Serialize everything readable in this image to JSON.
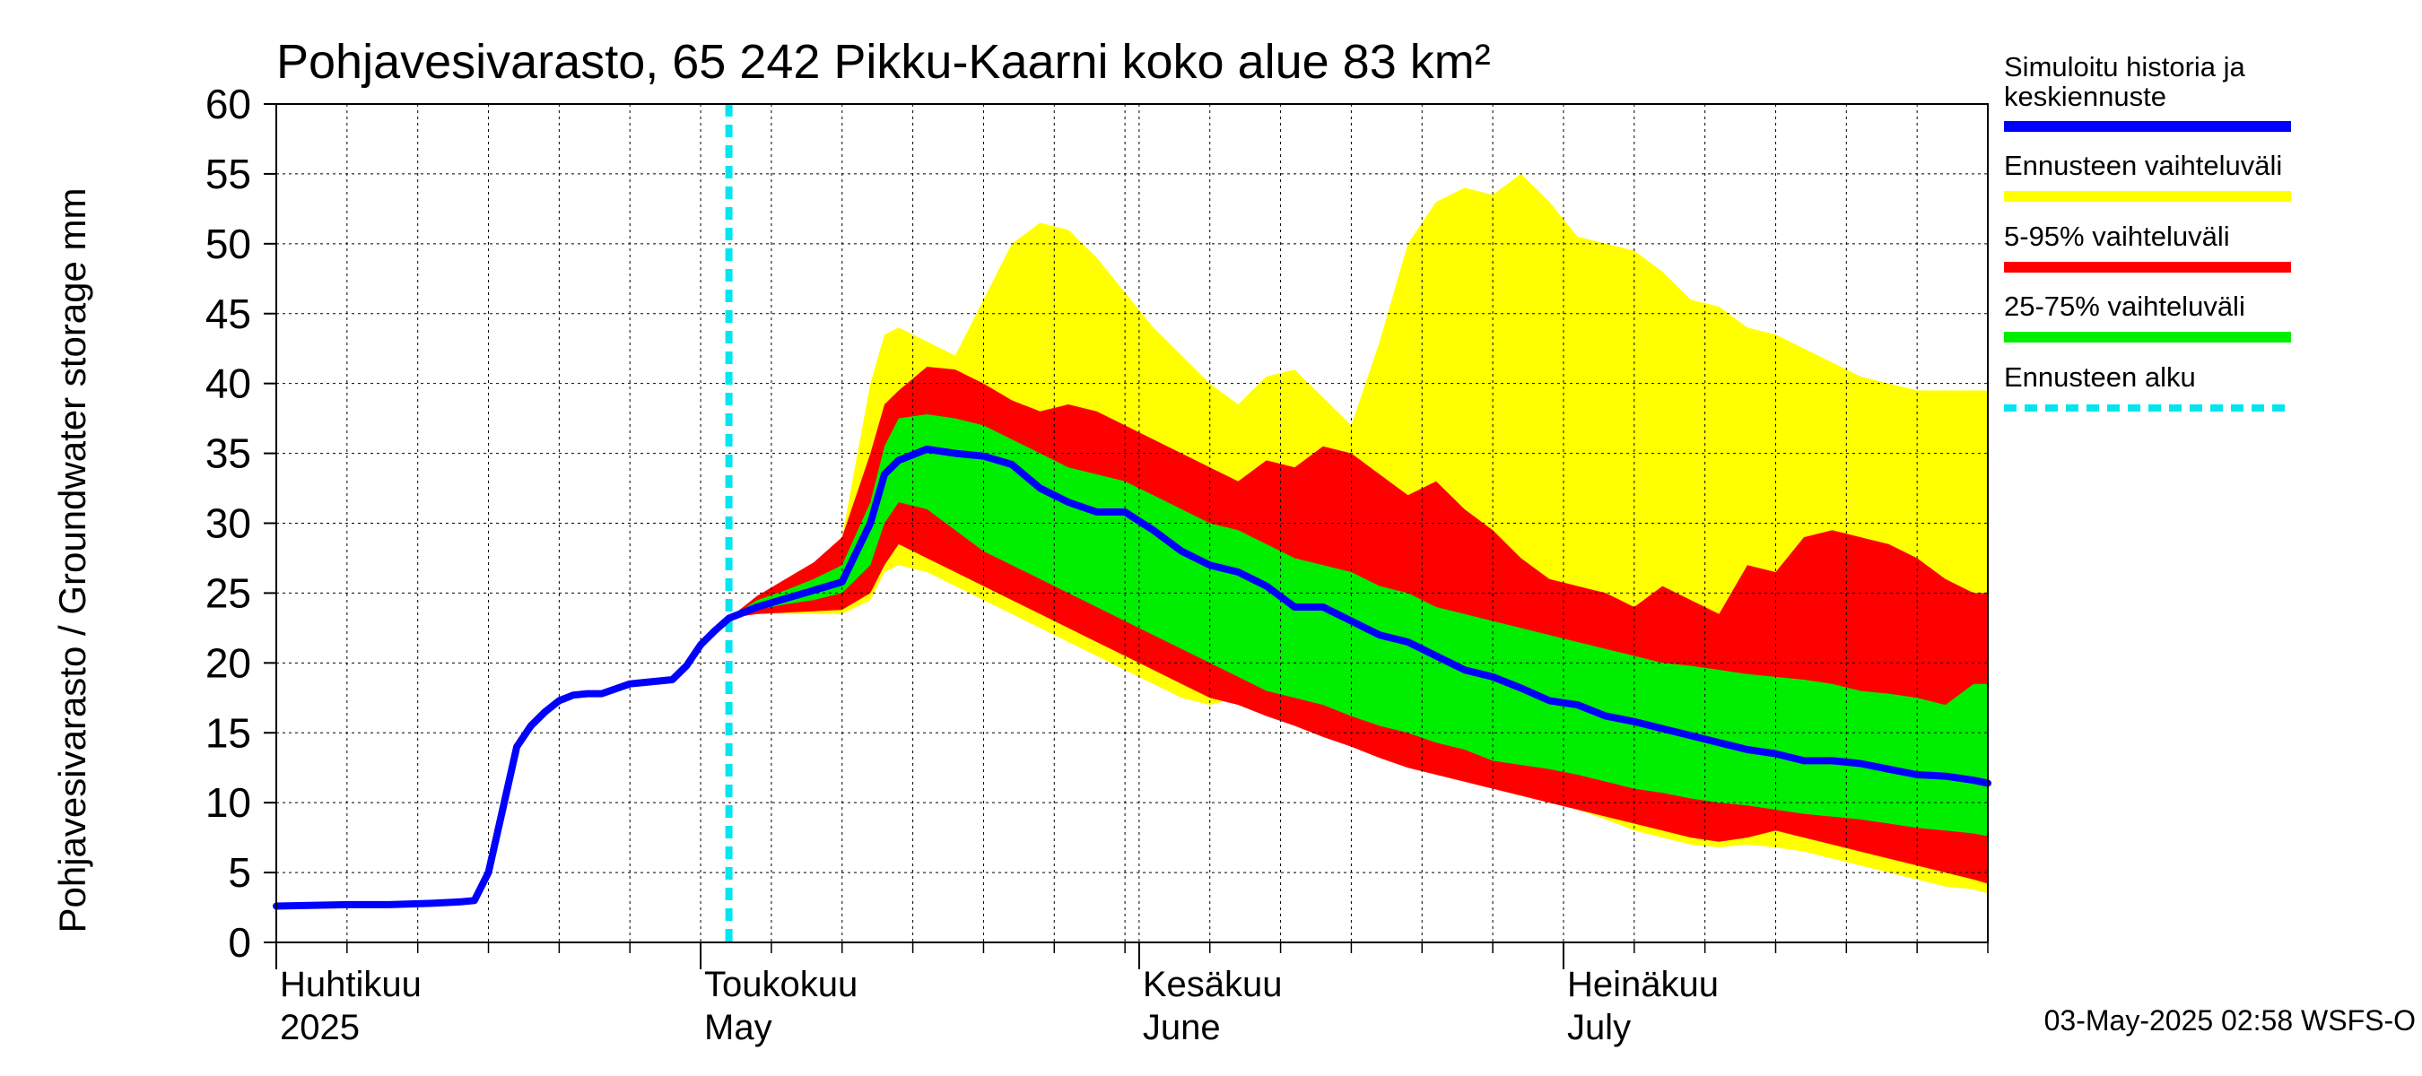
{
  "chart_data": {
    "type": "area",
    "title": "Pohjavesivarasto, 65 242 Pikku-Kaarni koko alue 83 km²",
    "ylabel": "Pohjavesivarasto / Groundwater storage   mm",
    "ylim": [
      0,
      60
    ],
    "yticks": [
      0,
      5,
      10,
      15,
      20,
      25,
      30,
      35,
      40,
      45,
      50,
      55,
      60
    ],
    "xlim": [
      "2025-04-01",
      "2025-07-31"
    ],
    "month_labels": [
      {
        "date": "2025-04-01",
        "fi": "Huhtikuu",
        "en": "2025"
      },
      {
        "date": "2025-05-01",
        "fi": "Toukokuu",
        "en": "May"
      },
      {
        "date": "2025-06-01",
        "fi": "Kesäkuu",
        "en": "June"
      },
      {
        "date": "2025-07-01",
        "fi": "Heinäkuu",
        "en": "July"
      }
    ],
    "forecast_start": "2025-05-03",
    "footer": "03-May-2025 02:58 WSFS-O",
    "grid": true,
    "legend_position": "right",
    "legend": [
      {
        "label": "Simuloitu historia ja keskiennuste",
        "color": "#0000ff",
        "style": "solid"
      },
      {
        "label": "Ennusteen vaihteluväli",
        "color": "#ffff00",
        "style": "solid"
      },
      {
        "label": "5-95% vaihteluväli",
        "color": "#ff0000",
        "style": "solid"
      },
      {
        "label": "25-75% vaihteluväli",
        "color": "#00ee00",
        "style": "solid"
      },
      {
        "label": "Ennusteen alku",
        "color": "#00e5ee",
        "style": "dashed"
      }
    ],
    "colors": {
      "median": "#0000ff",
      "range": "#ffff00",
      "p5_95": "#ff0000",
      "p25_75": "#00ee00",
      "forecast_start": "#00e5ee"
    },
    "history": {
      "dates": [
        "2025-04-01",
        "2025-04-06",
        "2025-04-09",
        "2025-04-12",
        "2025-04-14",
        "2025-04-15",
        "2025-04-16",
        "2025-04-17",
        "2025-04-18",
        "2025-04-19",
        "2025-04-20",
        "2025-04-21",
        "2025-04-22",
        "2025-04-23",
        "2025-04-24",
        "2025-04-26",
        "2025-04-27",
        "2025-04-29",
        "2025-04-30",
        "2025-05-01",
        "2025-05-02",
        "2025-05-03"
      ],
      "values": [
        2.6,
        2.7,
        2.7,
        2.8,
        2.9,
        3.0,
        5.0,
        9.5,
        14.0,
        15.5,
        16.5,
        17.3,
        17.7,
        17.8,
        17.8,
        18.5,
        18.6,
        18.8,
        19.8,
        21.3,
        22.3,
        23.2
      ]
    },
    "forecast": {
      "dates": [
        "2025-05-03",
        "2025-05-05",
        "2025-05-07",
        "2025-05-09",
        "2025-05-11",
        "2025-05-13",
        "2025-05-14",
        "2025-05-15",
        "2025-05-17",
        "2025-05-19",
        "2025-05-21",
        "2025-05-23",
        "2025-05-25",
        "2025-05-27",
        "2025-05-29",
        "2025-05-31",
        "2025-06-02",
        "2025-06-04",
        "2025-06-06",
        "2025-06-08",
        "2025-06-10",
        "2025-06-12",
        "2025-06-14",
        "2025-06-16",
        "2025-06-18",
        "2025-06-20",
        "2025-06-22",
        "2025-06-24",
        "2025-06-26",
        "2025-06-28",
        "2025-06-30",
        "2025-07-02",
        "2025-07-04",
        "2025-07-06",
        "2025-07-08",
        "2025-07-10",
        "2025-07-12",
        "2025-07-14",
        "2025-07-16",
        "2025-07-18",
        "2025-07-20",
        "2025-07-22",
        "2025-07-24",
        "2025-07-26",
        "2025-07-28",
        "2025-07-30",
        "2025-07-31"
      ],
      "median": [
        23.2,
        24.0,
        24.6,
        25.2,
        25.8,
        30.0,
        33.5,
        34.5,
        35.3,
        35.0,
        34.8,
        34.2,
        32.5,
        31.5,
        30.8,
        30.8,
        29.5,
        28.0,
        27.0,
        26.5,
        25.5,
        24.0,
        24.0,
        23.0,
        22.0,
        21.5,
        20.5,
        19.5,
        19.0,
        18.2,
        17.3,
        17.0,
        16.2,
        15.8,
        15.3,
        14.8,
        14.3,
        13.8,
        13.5,
        13.0,
        13.0,
        12.8,
        12.4,
        12.0,
        11.9,
        11.6,
        11.4
      ],
      "p25": [
        23.2,
        23.8,
        24.2,
        24.5,
        25.0,
        27.0,
        30.0,
        31.5,
        31.0,
        29.5,
        28.0,
        27.0,
        26.0,
        25.0,
        24.0,
        23.0,
        22.0,
        21.0,
        20.0,
        19.0,
        18.0,
        17.5,
        17.0,
        16.2,
        15.5,
        15.0,
        14.3,
        13.8,
        13.0,
        12.7,
        12.4,
        12.0,
        11.5,
        11.0,
        10.7,
        10.3,
        10.0,
        9.8,
        9.5,
        9.2,
        9.0,
        8.8,
        8.5,
        8.2,
        8.0,
        7.8,
        7.6
      ],
      "p75": [
        23.2,
        24.5,
        25.2,
        26.0,
        27.0,
        31.5,
        35.5,
        37.5,
        37.8,
        37.5,
        37.0,
        36.0,
        35.0,
        34.0,
        33.5,
        33.0,
        32.0,
        31.0,
        30.0,
        29.5,
        28.5,
        27.5,
        27.0,
        26.5,
        25.5,
        25.0,
        24.0,
        23.5,
        23.0,
        22.5,
        22.0,
        21.5,
        21.0,
        20.5,
        20.0,
        19.8,
        19.5,
        19.2,
        19.0,
        18.8,
        18.5,
        18.0,
        17.8,
        17.5,
        17.0,
        18.5,
        18.5
      ],
      "p5": [
        23.2,
        23.5,
        23.6,
        23.7,
        23.8,
        25.0,
        27.0,
        28.5,
        27.5,
        26.5,
        25.5,
        24.5,
        23.5,
        22.5,
        21.5,
        20.5,
        19.5,
        18.5,
        17.5,
        17.0,
        16.2,
        15.5,
        14.7,
        14.0,
        13.2,
        12.5,
        12.0,
        11.5,
        11.0,
        10.5,
        10.0,
        9.5,
        9.0,
        8.5,
        8.0,
        7.5,
        7.2,
        7.5,
        8.0,
        7.5,
        7.0,
        6.5,
        6.0,
        5.5,
        5.0,
        4.5,
        4.2
      ],
      "p95": [
        23.2,
        24.8,
        26.0,
        27.2,
        29.0,
        35.0,
        38.5,
        39.5,
        41.2,
        41.0,
        40.0,
        38.8,
        38.0,
        38.5,
        38.0,
        37.0,
        36.0,
        35.0,
        34.0,
        33.0,
        34.5,
        34.0,
        35.5,
        35.0,
        33.5,
        32.0,
        33.0,
        31.0,
        29.5,
        27.5,
        26.0,
        25.5,
        25.0,
        24.0,
        25.5,
        24.5,
        23.5,
        27.0,
        26.5,
        29.0,
        29.5,
        29.0,
        28.5,
        27.5,
        26.0,
        25.0,
        25.0
      ],
      "min": [
        23.2,
        23.5,
        23.5,
        23.5,
        23.5,
        24.5,
        26.5,
        27.0,
        26.5,
        25.5,
        24.5,
        23.5,
        22.5,
        21.5,
        20.5,
        19.5,
        18.5,
        17.5,
        17.0,
        17.5,
        16.5,
        16.0,
        15.0,
        14.0,
        13.5,
        13.0,
        12.0,
        11.5,
        11.0,
        10.5,
        10.0,
        9.5,
        8.8,
        8.0,
        7.5,
        7.0,
        6.8,
        7.0,
        6.8,
        6.5,
        6.0,
        5.5,
        5.0,
        4.5,
        4.0,
        3.8,
        3.5
      ],
      "max": [
        23.2,
        24.5,
        25.5,
        27.0,
        29.0,
        40.0,
        43.5,
        44.0,
        43.0,
        42.0,
        46.0,
        50.0,
        51.5,
        51.0,
        49.0,
        46.5,
        44.0,
        42.0,
        40.0,
        38.5,
        40.5,
        41.0,
        39.0,
        37.0,
        43.0,
        50.0,
        53.0,
        54.0,
        53.5,
        55.0,
        53.0,
        50.5,
        50.0,
        49.5,
        48.0,
        46.0,
        45.5,
        44.0,
        43.5,
        42.5,
        41.5,
        40.5,
        40.0,
        39.5,
        39.5,
        39.5,
        39.5
      ]
    }
  }
}
